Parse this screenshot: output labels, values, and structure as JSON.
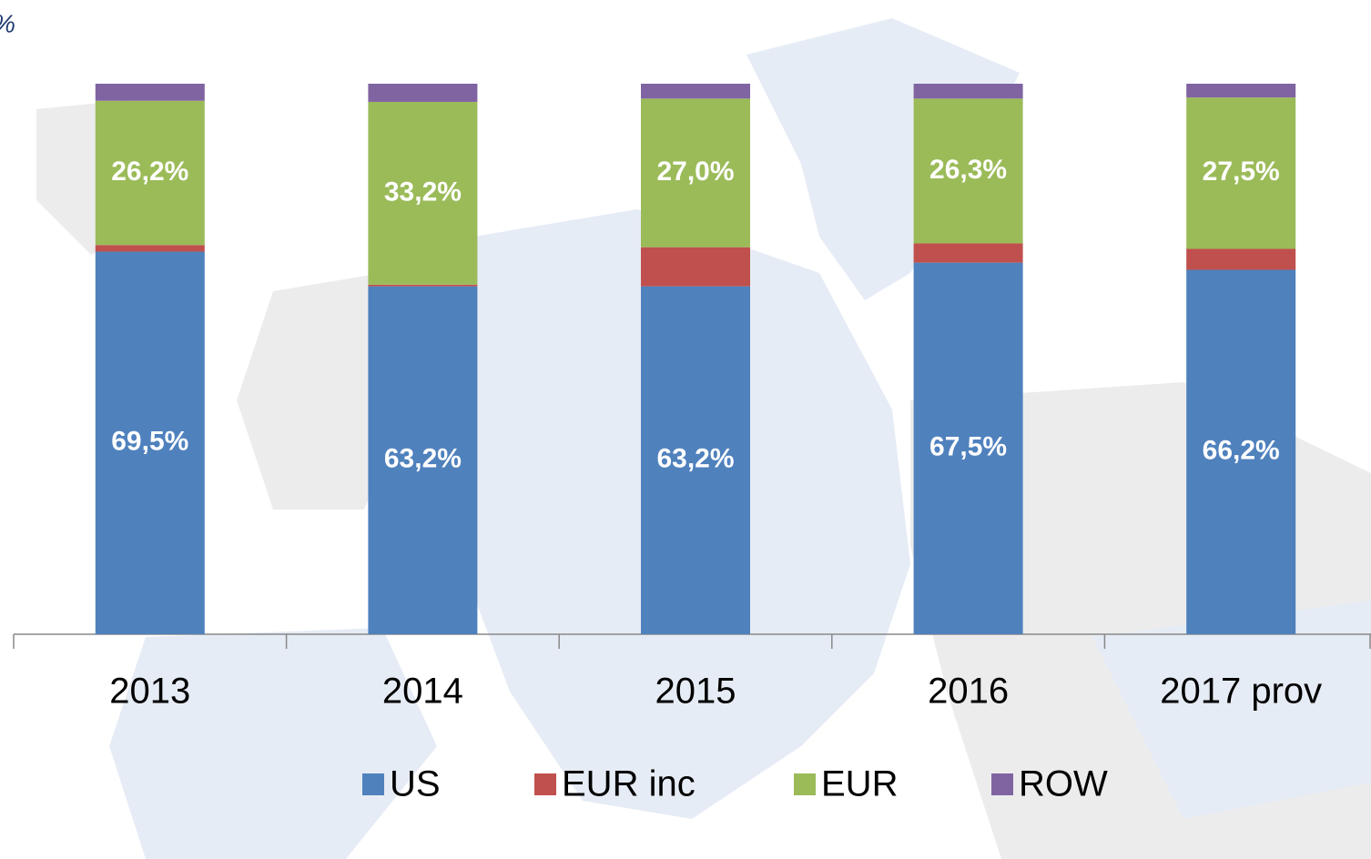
{
  "chart_data": {
    "type": "stacked_bar",
    "ylabel": "%",
    "categories": [
      "2013",
      "2014",
      "2015",
      "2016",
      "2017 prov"
    ],
    "series": [
      {
        "name": "US",
        "color": "#4f81bd",
        "values": [
          69.5,
          63.2,
          63.2,
          67.5,
          66.2
        ],
        "value_labels": [
          "69,5%",
          "63,2%",
          "63,2%",
          "67,5%",
          "66,2%"
        ]
      },
      {
        "name": "EUR inc",
        "color": "#c0504d",
        "values": [
          1.2,
          0.3,
          7.1,
          3.5,
          3.8
        ]
      },
      {
        "name": "EUR",
        "color": "#9bbb59",
        "values": [
          26.2,
          33.2,
          27.0,
          26.3,
          27.5
        ],
        "value_labels": [
          "26,2%",
          "33,2%",
          "27,0%",
          "26,3%",
          "27,5%"
        ]
      },
      {
        "name": "ROW",
        "color": "#8064a2",
        "values": [
          3.1,
          3.3,
          2.7,
          2.7,
          2.5
        ]
      }
    ],
    "ylim": [
      0,
      100
    ],
    "legend": "bottom"
  }
}
